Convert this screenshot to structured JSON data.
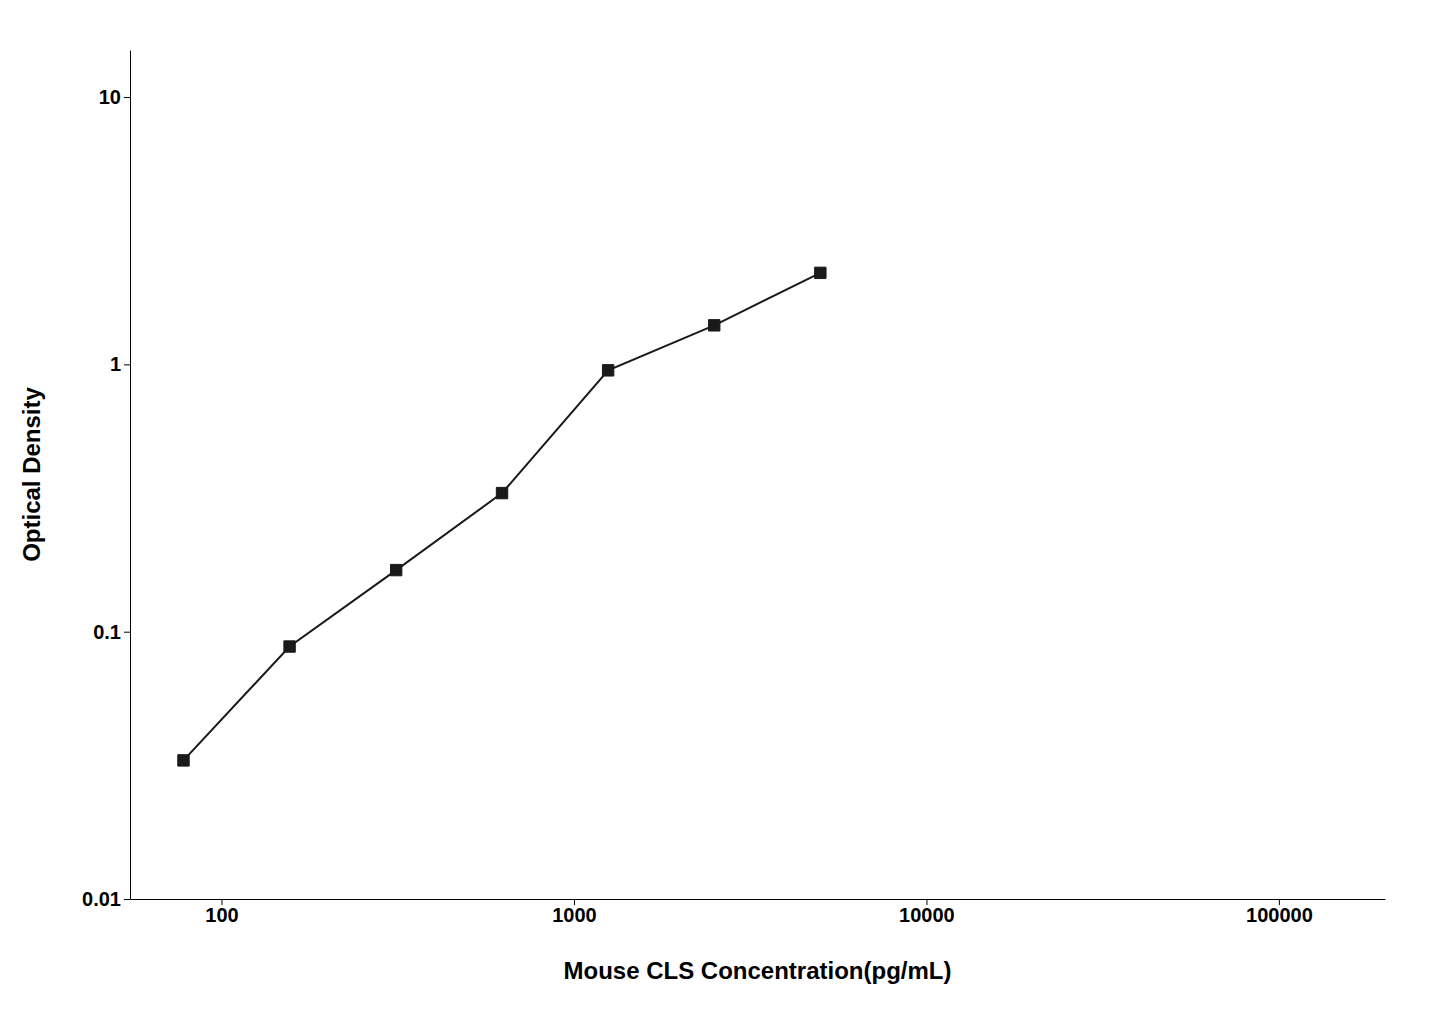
{
  "chart_data": {
    "type": "line",
    "x": [
      78,
      156,
      313,
      625,
      1250,
      2500,
      5000
    ],
    "values": [
      0.033,
      0.088,
      0.17,
      0.33,
      0.95,
      1.4,
      2.2
    ],
    "xlim": [
      55,
      200000
    ],
    "ylim": [
      0.01,
      15
    ],
    "xticks": [
      100,
      1000,
      10000,
      100000
    ],
    "yticks": [
      0.01,
      0.1,
      1,
      10
    ],
    "xlabel": "Mouse CLS Concentration(pg/mL)",
    "ylabel": "Optical Density",
    "log": true,
    "color": "#1a1a1a",
    "marker": "square"
  }
}
